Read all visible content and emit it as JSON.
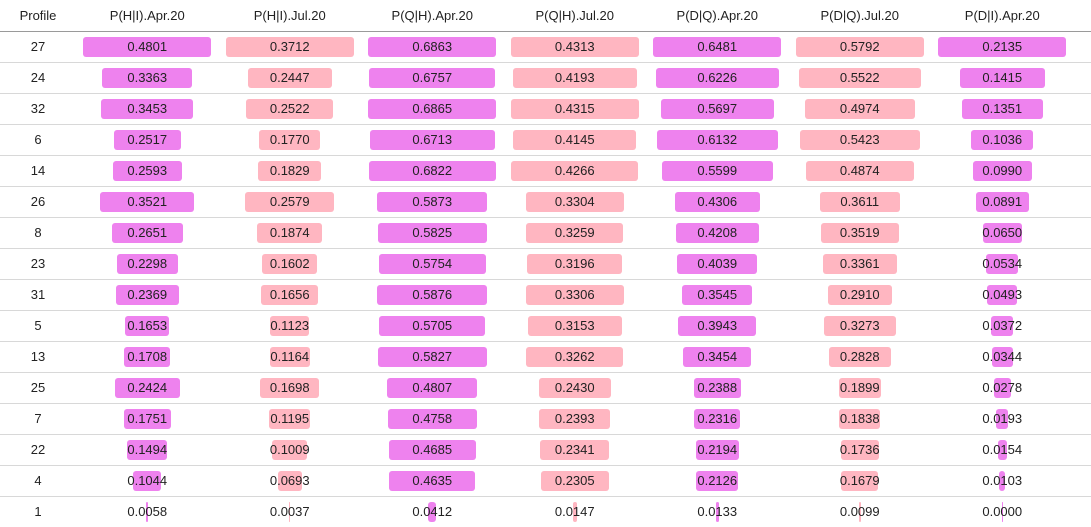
{
  "chart_data": {
    "type": "table",
    "row_header": "Profile",
    "columns": [
      "P(H|I).Apr.20",
      "P(H|I).Jul.20",
      "P(Q|H).Apr.20",
      "P(Q|H).Jul.20",
      "P(D|Q).Apr.20",
      "P(D|Q).Jul.20",
      "P(D|I).Apr.20"
    ],
    "column_colors": [
      "#ee82ee",
      "#ffb6c1",
      "#ee82ee",
      "#ffb6c1",
      "#ee82ee",
      "#ffb6c1",
      "#ee82ee"
    ],
    "rows": [
      {
        "profile": "27",
        "values": [
          "0.4801",
          "0.3712",
          "0.6863",
          "0.4313",
          "0.6481",
          "0.5792",
          "0.2135"
        ]
      },
      {
        "profile": "24",
        "values": [
          "0.3363",
          "0.2447",
          "0.6757",
          "0.4193",
          "0.6226",
          "0.5522",
          "0.1415"
        ]
      },
      {
        "profile": "32",
        "values": [
          "0.3453",
          "0.2522",
          "0.6865",
          "0.4315",
          "0.5697",
          "0.4974",
          "0.1351"
        ]
      },
      {
        "profile": "6",
        "values": [
          "0.2517",
          "0.1770",
          "0.6713",
          "0.4145",
          "0.6132",
          "0.5423",
          "0.1036"
        ]
      },
      {
        "profile": "14",
        "values": [
          "0.2593",
          "0.1829",
          "0.6822",
          "0.4266",
          "0.5599",
          "0.4874",
          "0.0990"
        ]
      },
      {
        "profile": "26",
        "values": [
          "0.3521",
          "0.2579",
          "0.5873",
          "0.3304",
          "0.4306",
          "0.3611",
          "0.0891"
        ]
      },
      {
        "profile": "8",
        "values": [
          "0.2651",
          "0.1874",
          "0.5825",
          "0.3259",
          "0.4208",
          "0.3519",
          "0.0650"
        ]
      },
      {
        "profile": "23",
        "values": [
          "0.2298",
          "0.1602",
          "0.5754",
          "0.3196",
          "0.4039",
          "0.3361",
          "0.0534"
        ]
      },
      {
        "profile": "31",
        "values": [
          "0.2369",
          "0.1656",
          "0.5876",
          "0.3306",
          "0.3545",
          "0.2910",
          "0.0493"
        ]
      },
      {
        "profile": "5",
        "values": [
          "0.1653",
          "0.1123",
          "0.5705",
          "0.3153",
          "0.3943",
          "0.3273",
          "0.0372"
        ]
      },
      {
        "profile": "13",
        "values": [
          "0.1708",
          "0.1164",
          "0.5827",
          "0.3262",
          "0.3454",
          "0.2828",
          "0.0344"
        ]
      },
      {
        "profile": "25",
        "values": [
          "0.2424",
          "0.1698",
          "0.4807",
          "0.2430",
          "0.2388",
          "0.1899",
          "0.0278"
        ]
      },
      {
        "profile": "7",
        "values": [
          "0.1751",
          "0.1195",
          "0.4758",
          "0.2393",
          "0.2316",
          "0.1838",
          "0.0193"
        ]
      },
      {
        "profile": "22",
        "values": [
          "0.1494",
          "0.1009",
          "0.4685",
          "0.2341",
          "0.2194",
          "0.1736",
          "0.0154"
        ]
      },
      {
        "profile": "4",
        "values": [
          "0.1044",
          "0.0693",
          "0.4635",
          "0.2305",
          "0.2126",
          "0.1679",
          "0.0103"
        ]
      },
      {
        "profile": "1",
        "values": [
          "0.0058",
          "0.0037",
          "0.0412",
          "0.0147",
          "0.0133",
          "0.0099",
          "0.0000"
        ]
      }
    ]
  }
}
